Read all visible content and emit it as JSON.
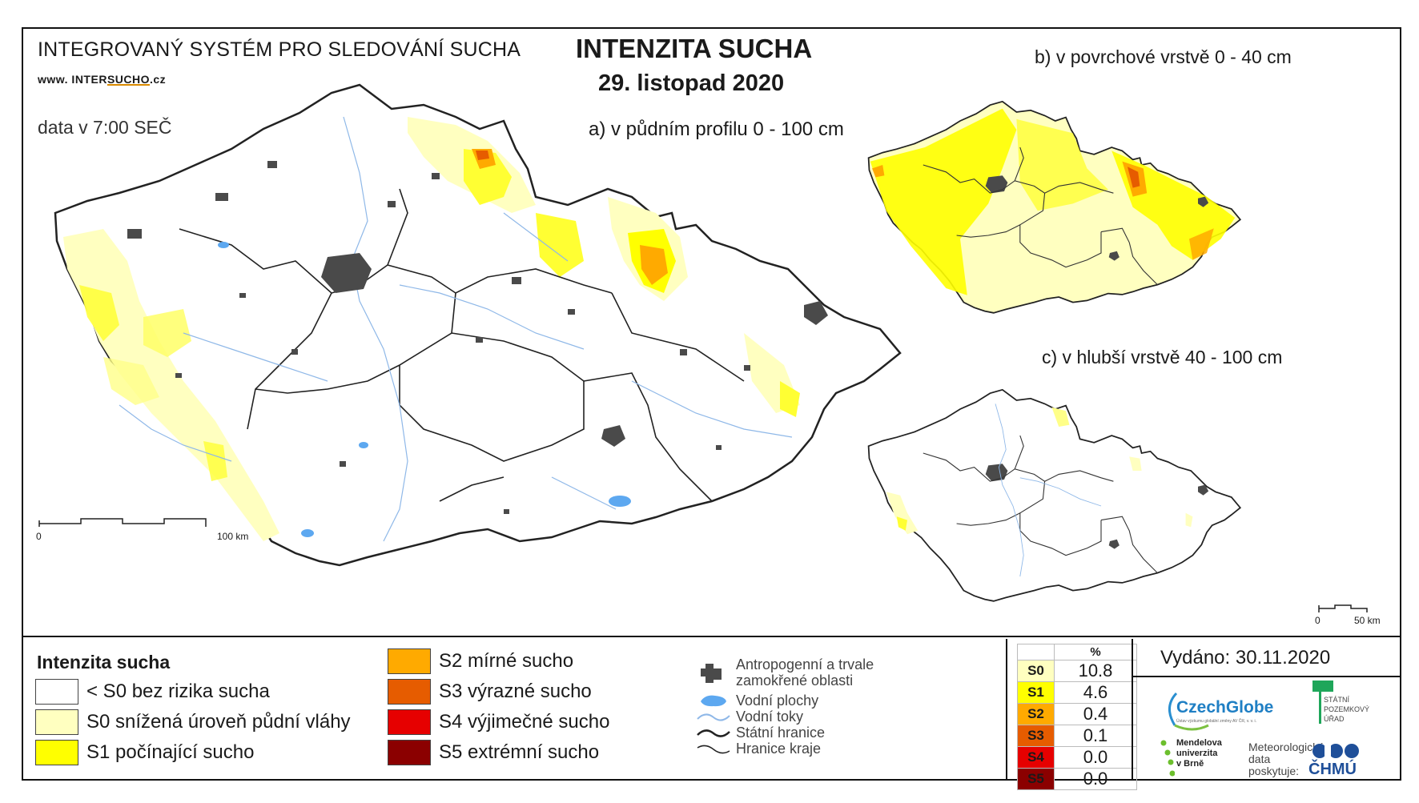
{
  "header": {
    "system_title": "INTEGROVANÝ SYSTÉM PRO SLEDOVÁNÍ SUCHA",
    "web_prefix": "www. INTER",
    "web_mid": "SUCHO",
    "web_suffix": ".cz",
    "data_time": "data v 7:00 SEČ",
    "main_title": "INTENZITA SUCHA",
    "date": "29. listopad 2020"
  },
  "maps": {
    "a_title": "a) v půdním profilu 0 - 100 cm",
    "b_title": "b) v povrchové vrstvě 0 - 40 cm",
    "c_title": "c) v hlubší vrstvě 40 - 100 cm",
    "a_scale_start": "0",
    "a_scale_end": "100 km",
    "c_scale_start": "0",
    "c_scale_end": "50 km"
  },
  "legend": {
    "title": "Intenzita sucha",
    "classes": [
      {
        "label": "< S0 bez rizika sucha",
        "color": "#ffffff"
      },
      {
        "label": "S0 snížená úroveň půdní vláhy",
        "color": "#ffffc0"
      },
      {
        "label": "S1 počínající sucho",
        "color": "#ffff00"
      },
      {
        "label": "S2 mírné sucho",
        "color": "#ffaa00"
      },
      {
        "label": "S3 výrazné sucho",
        "color": "#e65c00"
      },
      {
        "label": "S4 výjimečné sucho",
        "color": "#e60000"
      },
      {
        "label": "S5 extrémní sucho",
        "color": "#8b0000"
      }
    ],
    "symbols": {
      "urban": "Antropogenní a trvale zamokřené oblasti",
      "water_areas": "Vodní plochy",
      "streams": "Vodní toky",
      "state_border": "Státní hranice",
      "region_border": "Hranice kraje"
    }
  },
  "stats": {
    "header": "%",
    "rows": [
      {
        "cls": "S0",
        "value": "10.8",
        "color": "#ffffc0"
      },
      {
        "cls": "S1",
        "value": "4.6",
        "color": "#ffff00"
      },
      {
        "cls": "S2",
        "value": "0.4",
        "color": "#ffaa00"
      },
      {
        "cls": "S3",
        "value": "0.1",
        "color": "#e65c00"
      },
      {
        "cls": "S4",
        "value": "0.0",
        "color": "#e60000"
      },
      {
        "cls": "S5",
        "value": "0.0",
        "color": "#8b0000"
      }
    ]
  },
  "footer": {
    "issued": "Vydáno: 30.11.2020",
    "czechglobe": "CzechGlobe",
    "czechglobe_sub": "Ústav výzkumu globální změny AV ČR, v. v. i.",
    "spu": "STÁTNÍ POZEMKOVÝ ÚŘAD",
    "mendel": "Mendelova univerzita v Brně",
    "meteo": "Meteorologická data poskytuje:",
    "chmu": "ČHMÚ"
  }
}
